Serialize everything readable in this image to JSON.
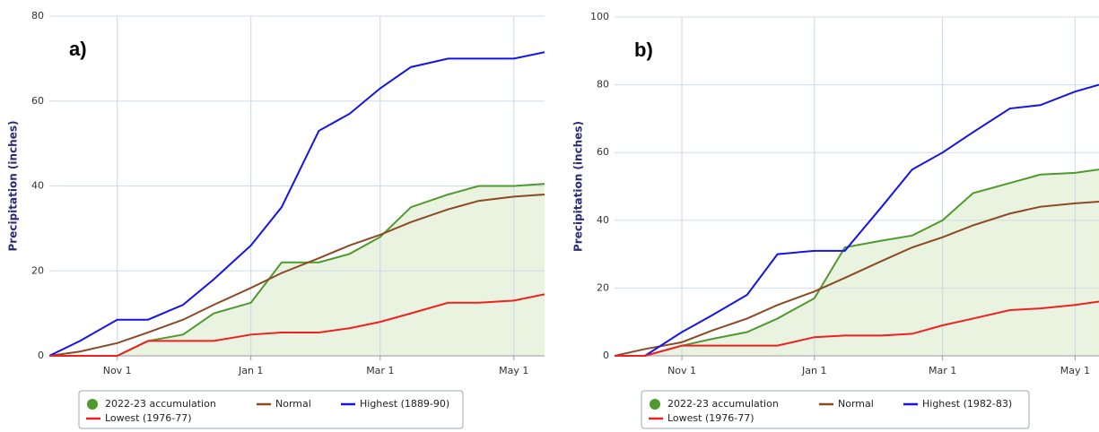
{
  "chart_data": [
    {
      "type": "line",
      "annotation": "a)",
      "y_label": "Precipitation (inches)",
      "x": [
        "Oct 1",
        "Oct 15",
        "Nov 1",
        "Nov 15",
        "Dec 1",
        "Dec 15",
        "Jan 1",
        "Jan 15",
        "Feb 1",
        "Feb 15",
        "Mar 1",
        "Mar 15",
        "Apr 1",
        "Apr 15",
        "May 1",
        "May 15"
      ],
      "xlim": [
        "Oct 1",
        "May 15"
      ],
      "xticks": [
        "Nov 1",
        "Jan 1",
        "Mar 1",
        "May 1"
      ],
      "ylim": [
        0,
        80
      ],
      "yticks": [
        0,
        20,
        40,
        60,
        80
      ],
      "grid": true,
      "series": [
        {
          "name": "2022-23 accumulation",
          "color": "#4f9a2c",
          "fill": "#eaf2e0",
          "values": [
            0,
            0,
            0,
            3.5,
            5,
            10,
            12.5,
            22,
            22,
            24,
            28,
            35,
            38,
            40,
            40,
            40.5
          ]
        },
        {
          "name": "Normal",
          "color": "#8b4a24",
          "values": [
            0,
            1,
            3,
            5.5,
            8.5,
            12,
            16,
            19.5,
            23,
            26,
            28.5,
            31.5,
            34.5,
            36.5,
            37.5,
            38
          ]
        },
        {
          "name": "Highest (1889-90)",
          "color": "#1414e6",
          "values": [
            0,
            3.5,
            8.5,
            8.5,
            12,
            18,
            26,
            35,
            53,
            57,
            63,
            68,
            70,
            70,
            70,
            71.5
          ]
        },
        {
          "name": "Lowest (1976-77)",
          "color": "#f02020",
          "values": [
            0,
            0,
            0,
            3.5,
            3.5,
            3.5,
            5,
            5.5,
            5.5,
            6.5,
            8,
            10,
            12.5,
            12.5,
            13,
            14.5
          ]
        }
      ]
    },
    {
      "type": "line",
      "annotation": "b)",
      "y_label": "Precipitation (inches)",
      "x": [
        "Oct 1",
        "Oct 15",
        "Nov 1",
        "Nov 15",
        "Dec 1",
        "Dec 15",
        "Jan 1",
        "Jan 15",
        "Feb 1",
        "Feb 15",
        "Mar 1",
        "Mar 15",
        "Apr 1",
        "Apr 15",
        "May 1",
        "May 12"
      ],
      "xlim": [
        "Oct 1",
        "May 12"
      ],
      "xticks": [
        "Nov 1",
        "Jan 1",
        "Mar 1",
        "May 1"
      ],
      "ylim": [
        0,
        100
      ],
      "yticks": [
        0,
        20,
        40,
        60,
        80,
        100
      ],
      "grid": true,
      "series": [
        {
          "name": "2022-23 accumulation",
          "color": "#4f9a2c",
          "fill": "#eaf2e0",
          "values": [
            0,
            0,
            3,
            5,
            7,
            11,
            17,
            32,
            34,
            35.5,
            40,
            48,
            51,
            53.5,
            54,
            55
          ]
        },
        {
          "name": "Normal",
          "color": "#8b4a24",
          "values": [
            0,
            2,
            4,
            7.5,
            11,
            15,
            19,
            23,
            28,
            32,
            35,
            38.5,
            42,
            44,
            45,
            45.5
          ]
        },
        {
          "name": "Highest (1982-83)",
          "color": "#1414e6",
          "values": [
            0,
            0,
            7,
            12,
            18,
            30,
            31,
            31,
            44,
            55,
            60,
            66,
            73,
            74,
            78,
            80
          ]
        },
        {
          "name": "Lowest (1976-77)",
          "color": "#f02020",
          "values": [
            0,
            0,
            3,
            3,
            3,
            3,
            5.5,
            6,
            6,
            6.5,
            9,
            11,
            13.5,
            14,
            15,
            16
          ]
        }
      ]
    }
  ]
}
